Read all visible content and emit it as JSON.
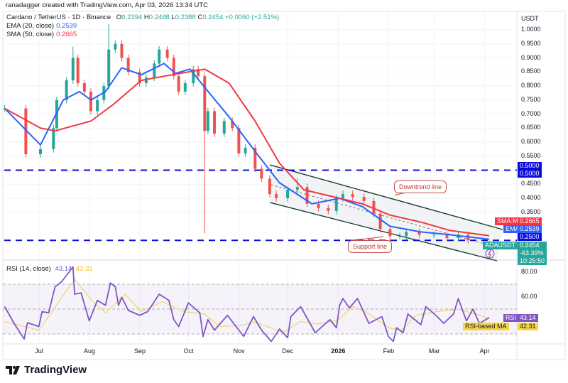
{
  "header": {
    "attribution": "ranadagger created with TradingView.com, Apr 03, 2026 13:34 UTC",
    "symbol": "Cardano / TetherUS · 1D · Binance",
    "ohlc": {
      "o_label": "O",
      "o": "0.2394",
      "h_label": "H",
      "h": "0.2488",
      "l_label": "L",
      "l": "0.2388",
      "c_label": "C",
      "c": "0.2454",
      "change": "+0.0060 (+2.51%)"
    },
    "ema_label": "EMA (20, close)",
    "ema_value": "0.2539",
    "sma_label": "SMA (50, close)",
    "sma_value": "0.2665"
  },
  "axis": {
    "currency": "USDT",
    "price_ticks": [
      "1.0000",
      "0.9500",
      "0.9000",
      "0.8500",
      "0.8000",
      "0.7500",
      "0.7000",
      "0.6500",
      "0.6000",
      "0.5500",
      "0.4500",
      "0.4000",
      "0.3500"
    ],
    "time_ticks": [
      "Jul",
      "Aug",
      "Sep",
      "Oct",
      "Nov",
      "Dec",
      "2026",
      "Feb",
      "Mar",
      "Apr"
    ],
    "rsi_ticks": [
      "80.00",
      "60.00"
    ]
  },
  "tags": {
    "level_upper_1": "0.5000",
    "level_upper_2": "0.5000",
    "sma_name": "SMA:MA",
    "sma": "0.2665",
    "ema_name": "EMA",
    "ema": "0.2539",
    "level_lower": "0.2500",
    "symbol": "ADAUSDT",
    "price": "0.2454",
    "change_pct": "-63.39%",
    "countdown": "10:25:50",
    "rsi_name": "RSI",
    "rsi": "43.14",
    "rsi_ma_name": "RSI-based MA",
    "rsi_ma": "42.31"
  },
  "annotations": {
    "downtrend": "Downtrend line",
    "support": "Support line"
  },
  "rsi_legend": {
    "label": "RSI (14, close)",
    "rsi": "43.14",
    "ma": "42.31"
  },
  "brand": "TradingView",
  "colors": {
    "up": "#26a69a",
    "down": "#ef5350",
    "ema": "#2962ff",
    "sma": "#f23645",
    "level": "#0c0cd8",
    "rsi": "#7e57c2",
    "rsi_ma": "#f3d36b",
    "tag_last": "#26a69a"
  },
  "chart_data": [
    {
      "type": "candlestick",
      "title": "Cardano / TetherUS · 1D · Binance",
      "ylabel": "USDT",
      "ylim": [
        0.19,
        1.03
      ],
      "scale": "linear",
      "grid": true,
      "horizontal_levels": [
        0.5,
        0.25
      ],
      "candles": [
        {
          "d": "2025-06-09",
          "c": 0.72
        },
        {
          "d": "2025-06-22",
          "c": 0.557
        },
        {
          "d": "2025-07-01",
          "c": 0.575
        },
        {
          "d": "2025-07-09",
          "c": 0.65
        },
        {
          "d": "2025-07-11",
          "c": 0.75
        },
        {
          "d": "2025-07-17",
          "c": 0.82
        },
        {
          "d": "2025-07-21",
          "c": 0.9,
          "h": 0.94
        },
        {
          "d": "2025-07-24",
          "c": 0.81
        },
        {
          "d": "2025-07-28",
          "c": 0.78
        },
        {
          "d": "2025-08-01",
          "c": 0.71
        },
        {
          "d": "2025-08-05",
          "c": 0.75
        },
        {
          "d": "2025-08-09",
          "c": 0.8
        },
        {
          "d": "2025-08-12",
          "c": 0.93,
          "h": 1.02
        },
        {
          "d": "2025-08-16",
          "c": 0.95
        },
        {
          "d": "2025-08-20",
          "c": 0.9
        },
        {
          "d": "2025-08-24",
          "c": 0.85
        },
        {
          "d": "2025-08-31",
          "c": 0.81
        },
        {
          "d": "2025-09-04",
          "c": 0.83
        },
        {
          "d": "2025-09-09",
          "c": 0.88
        },
        {
          "d": "2025-09-12",
          "c": 0.93
        },
        {
          "d": "2025-09-17",
          "c": 0.9
        },
        {
          "d": "2025-09-21",
          "c": 0.835
        },
        {
          "d": "2025-09-24",
          "c": 0.78
        },
        {
          "d": "2025-09-28",
          "c": 0.81
        },
        {
          "d": "2025-10-03",
          "c": 0.86
        },
        {
          "d": "2025-10-06",
          "c": 0.835
        },
        {
          "d": "2025-10-10",
          "c": 0.64,
          "l": 0.275
        },
        {
          "d": "2025-10-12",
          "c": 0.71
        },
        {
          "d": "2025-10-16",
          "c": 0.63
        },
        {
          "d": "2025-10-22",
          "c": 0.675
        },
        {
          "d": "2025-10-27",
          "c": 0.65
        },
        {
          "d": "2025-10-31",
          "c": 0.56
        },
        {
          "d": "2025-11-04",
          "c": 0.58
        },
        {
          "d": "2025-11-10",
          "c": 0.505
        },
        {
          "d": "2025-11-14",
          "c": 0.47
        },
        {
          "d": "2025-11-19",
          "c": 0.415
        },
        {
          "d": "2025-11-23",
          "c": 0.4
        },
        {
          "d": "2025-11-30",
          "c": 0.43
        },
        {
          "d": "2025-12-06",
          "c": 0.44,
          "h": 0.47
        },
        {
          "d": "2025-12-12",
          "c": 0.38
        },
        {
          "d": "2025-12-19",
          "c": 0.365
        },
        {
          "d": "2025-12-25",
          "c": 0.355
        },
        {
          "d": "2025-12-30",
          "c": 0.4
        },
        {
          "d": "2026-01-03",
          "c": 0.415
        },
        {
          "d": "2026-01-09",
          "c": 0.405
        },
        {
          "d": "2026-01-16",
          "c": 0.39
        },
        {
          "d": "2026-01-22",
          "c": 0.345
        },
        {
          "d": "2026-01-26",
          "c": 0.29
        },
        {
          "d": "2026-02-01",
          "c": 0.265,
          "l": 0.22
        },
        {
          "d": "2026-02-07",
          "c": 0.265
        },
        {
          "d": "2026-02-11",
          "c": 0.28
        },
        {
          "d": "2026-02-19",
          "c": 0.27
        },
        {
          "d": "2026-02-28",
          "c": 0.27
        },
        {
          "d": "2026-03-08",
          "c": 0.258
        },
        {
          "d": "2026-03-15",
          "c": 0.27
        },
        {
          "d": "2026-03-21",
          "c": 0.25
        },
        {
          "d": "2026-04-03",
          "o": 0.2394,
          "h": 0.2488,
          "l": 0.2388,
          "c": 0.2454
        }
      ],
      "series": [
        {
          "name": "EMA (20, close)",
          "points": [
            [
              "2025-06-09",
              0.72
            ],
            [
              "2025-07-01",
              0.59
            ],
            [
              "2025-07-15",
              0.75
            ],
            [
              "2025-07-25",
              0.78
            ],
            [
              "2025-08-01",
              0.75
            ],
            [
              "2025-08-10",
              0.78
            ],
            [
              "2025-08-20",
              0.865
            ],
            [
              "2025-09-01",
              0.84
            ],
            [
              "2025-09-15",
              0.88
            ],
            [
              "2025-09-22",
              0.845
            ],
            [
              "2025-10-01",
              0.86
            ],
            [
              "2025-10-10",
              0.795
            ],
            [
              "2025-10-25",
              0.69
            ],
            [
              "2025-11-10",
              0.567
            ],
            [
              "2025-11-25",
              0.455
            ],
            [
              "2025-12-15",
              0.38
            ],
            [
              "2026-01-01",
              0.4
            ],
            [
              "2026-01-15",
              0.37
            ],
            [
              "2026-02-01",
              0.3
            ],
            [
              "2026-02-20",
              0.28
            ],
            [
              "2026-03-10",
              0.27
            ],
            [
              "2026-04-03",
              0.2539
            ]
          ]
        },
        {
          "name": "SMA (50, close)",
          "points": [
            [
              "2025-06-09",
              0.72
            ],
            [
              "2025-07-01",
              0.65
            ],
            [
              "2025-07-10",
              0.64
            ],
            [
              "2025-08-01",
              0.675
            ],
            [
              "2025-08-15",
              0.735
            ],
            [
              "2025-09-01",
              0.82
            ],
            [
              "2025-09-20",
              0.84
            ],
            [
              "2025-10-10",
              0.86
            ],
            [
              "2025-10-25",
              0.81
            ],
            [
              "2025-11-10",
              0.675
            ],
            [
              "2025-11-25",
              0.525
            ],
            [
              "2025-12-10",
              0.43
            ],
            [
              "2026-01-01",
              0.4
            ],
            [
              "2026-01-15",
              0.38
            ],
            [
              "2026-02-01",
              0.34
            ],
            [
              "2026-02-20",
              0.315
            ],
            [
              "2026-03-10",
              0.285
            ],
            [
              "2026-04-03",
              0.2665
            ]
          ]
        }
      ]
    },
    {
      "type": "line",
      "title": "RSI (14, close)",
      "ylim": [
        20,
        90
      ],
      "bands": [
        30,
        50,
        70
      ],
      "series": [
        {
          "name": "RSI",
          "points": [
            [
              "2025-06-09",
              52
            ],
            [
              "2025-06-15",
              38
            ],
            [
              "2025-06-21",
              26
            ],
            [
              "2025-06-23",
              39
            ],
            [
              "2025-06-30",
              36
            ],
            [
              "2025-07-02",
              48
            ],
            [
              "2025-07-06",
              47
            ],
            [
              "2025-07-10",
              68
            ],
            [
              "2025-07-14",
              72
            ],
            [
              "2025-07-19",
              80.5
            ],
            [
              "2025-07-21",
              84
            ],
            [
              "2025-07-22",
              62
            ],
            [
              "2025-07-26",
              63
            ],
            [
              "2025-07-31",
              40.5
            ],
            [
              "2025-08-05",
              57
            ],
            [
              "2025-08-10",
              53
            ],
            [
              "2025-08-13",
              71
            ],
            [
              "2025-08-16",
              68
            ],
            [
              "2025-08-18",
              53
            ],
            [
              "2025-08-20",
              59.5
            ],
            [
              "2025-08-24",
              49
            ],
            [
              "2025-08-31",
              45
            ],
            [
              "2025-09-05",
              48
            ],
            [
              "2025-09-12",
              62
            ],
            [
              "2025-09-18",
              57
            ],
            [
              "2025-09-21",
              41.5
            ],
            [
              "2025-09-24",
              36
            ],
            [
              "2025-09-30",
              55
            ],
            [
              "2025-10-07",
              47
            ],
            [
              "2025-10-09",
              28
            ],
            [
              "2025-10-12",
              41.5
            ],
            [
              "2025-10-16",
              33
            ],
            [
              "2025-10-24",
              45
            ],
            [
              "2025-11-03",
              28
            ],
            [
              "2025-11-09",
              44
            ],
            [
              "2025-11-14",
              33
            ],
            [
              "2025-11-20",
              24
            ],
            [
              "2025-11-25",
              34
            ],
            [
              "2025-11-30",
              27
            ],
            [
              "2025-12-02",
              44
            ],
            [
              "2025-12-08",
              52
            ],
            [
              "2025-12-17",
              31
            ],
            [
              "2025-12-26",
              41.5
            ],
            [
              "2025-12-30",
              35
            ],
            [
              "2026-01-01",
              53
            ],
            [
              "2026-01-03",
              58.5
            ],
            [
              "2026-01-07",
              51
            ],
            [
              "2026-01-12",
              58.5
            ],
            [
              "2026-01-19",
              38.5
            ],
            [
              "2026-01-27",
              44
            ],
            [
              "2026-01-31",
              28
            ],
            [
              "2026-02-03",
              24
            ],
            [
              "2026-02-05",
              35
            ],
            [
              "2026-02-09",
              31
            ],
            [
              "2026-02-12",
              46
            ],
            [
              "2026-02-20",
              37.5
            ],
            [
              "2026-02-23",
              52
            ],
            [
              "2026-03-02",
              44
            ],
            [
              "2026-03-06",
              38.5
            ],
            [
              "2026-03-12",
              46
            ],
            [
              "2026-03-15",
              58.5
            ],
            [
              "2026-03-20",
              40.5
            ],
            [
              "2026-03-24",
              50
            ],
            [
              "2026-03-28",
              38.5
            ],
            [
              "2026-04-03",
              43.14
            ]
          ]
        },
        {
          "name": "RSI-based MA",
          "points": [
            [
              "2025-06-09",
              40
            ],
            [
              "2025-06-30",
              33
            ],
            [
              "2025-07-22",
              74
            ],
            [
              "2025-08-03",
              55
            ],
            [
              "2025-08-10",
              47
            ],
            [
              "2025-08-22",
              62
            ],
            [
              "2025-09-01",
              48
            ],
            [
              "2025-09-14",
              56
            ],
            [
              "2025-09-27",
              48
            ],
            [
              "2025-10-10",
              46
            ],
            [
              "2025-10-19",
              36
            ],
            [
              "2025-11-03",
              37
            ],
            [
              "2025-11-08",
              40
            ],
            [
              "2025-11-20",
              35
            ],
            [
              "2025-11-27",
              31
            ],
            [
              "2025-12-08",
              40
            ],
            [
              "2025-12-19",
              38
            ],
            [
              "2025-12-31",
              41
            ],
            [
              "2026-01-09",
              52
            ],
            [
              "2026-01-17",
              48
            ],
            [
              "2026-01-31",
              35
            ],
            [
              "2026-02-08",
              33
            ],
            [
              "2026-02-17",
              45
            ],
            [
              "2026-03-02",
              48
            ],
            [
              "2026-03-15",
              50
            ],
            [
              "2026-03-28",
              45
            ],
            [
              "2026-04-03",
              42.31
            ]
          ]
        }
      ]
    }
  ]
}
